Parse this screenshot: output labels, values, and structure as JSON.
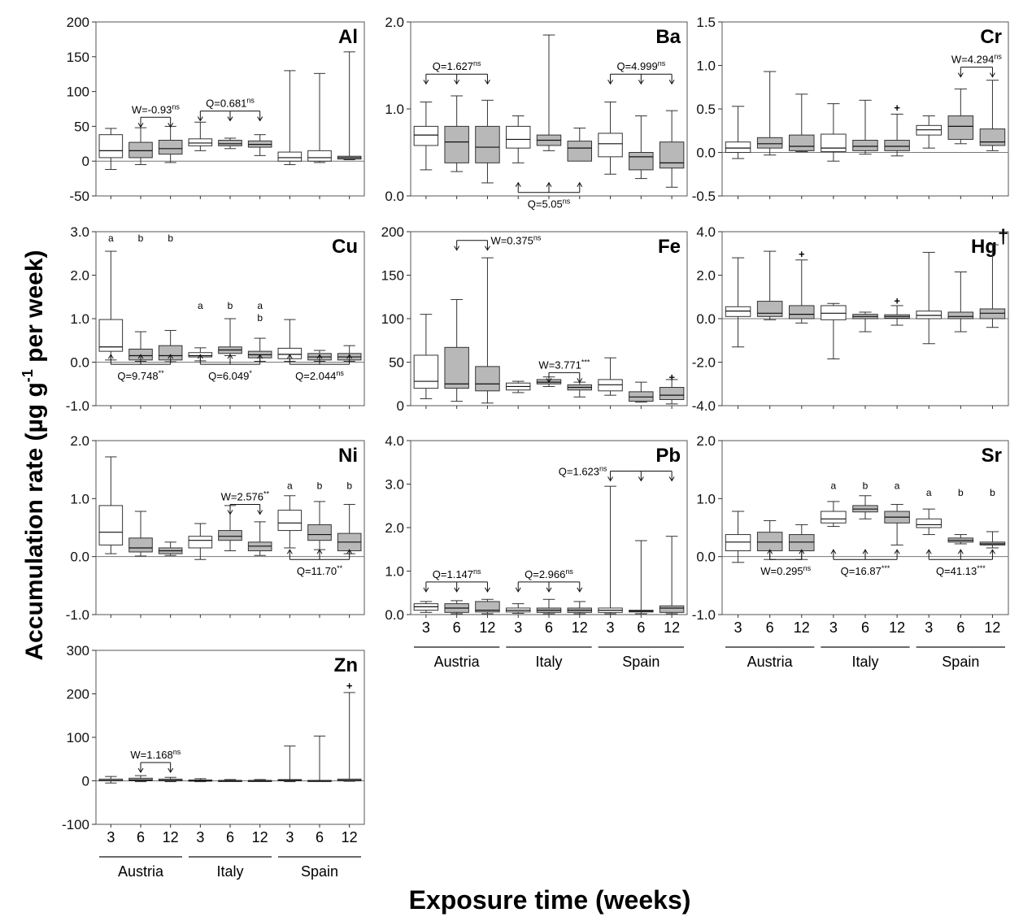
{
  "figure": {
    "ylabel_main": "Accumulation rate (µg g",
    "ylabel_sup": "-1",
    "ylabel_end": " per week)",
    "xlabel": "Exposure time (weeks)",
    "x_ticks": [
      "3",
      "6",
      "12",
      "3",
      "6",
      "12",
      "3",
      "6",
      "12"
    ],
    "countries": [
      "Austria",
      "Italy",
      "Spain"
    ],
    "colors": {
      "early": "#ffffff",
      "late": "#b8b8b8",
      "stroke": "#333333"
    }
  },
  "chart_data": [
    {
      "type": "box",
      "title": "Al",
      "ylim": [
        -50,
        200
      ],
      "yticks": [
        -50,
        0,
        50,
        100,
        150,
        200
      ],
      "ytick_labels": [
        "-50",
        "0",
        "50",
        "100",
        "150",
        "200"
      ],
      "boxes": [
        [
          -12,
          5,
          15,
          38,
          47
        ],
        [
          -5,
          5,
          15,
          27,
          48
        ],
        [
          -2,
          10,
          18,
          30,
          50
        ],
        [
          15,
          22,
          26,
          32,
          56
        ],
        [
          18,
          22,
          25,
          30,
          33
        ],
        [
          8,
          20,
          24,
          29,
          38
        ],
        [
          -5,
          0,
          5,
          13,
          130
        ],
        [
          -2,
          0,
          5,
          15,
          126
        ],
        [
          2,
          3,
          5,
          7,
          157
        ]
      ],
      "late": [
        1,
        2,
        4,
        5,
        8
      ],
      "annotations": [
        {
          "text": "W=-0.93",
          "sup": "ns",
          "groups": [
            1,
            2
          ],
          "side": "above",
          "y": 63
        },
        {
          "text": "Q=0.681",
          "sup": "ns",
          "groups": [
            3,
            4,
            5
          ],
          "side": "above",
          "y": 72
        }
      ],
      "letters": []
    },
    {
      "type": "box",
      "title": "Ba",
      "ylim": [
        0,
        2
      ],
      "yticks": [
        0,
        1,
        2
      ],
      "ytick_labels": [
        "0.0",
        "1.0",
        "2.0"
      ],
      "boxes": [
        [
          0.3,
          0.58,
          0.7,
          0.8,
          1.08
        ],
        [
          0.28,
          0.38,
          0.62,
          0.8,
          1.15
        ],
        [
          0.15,
          0.38,
          0.56,
          0.8,
          1.1
        ],
        [
          0.38,
          0.55,
          0.65,
          0.8,
          0.92
        ],
        [
          0.52,
          0.58,
          0.64,
          0.7,
          1.85
        ],
        [
          0.42,
          0.4,
          0.55,
          0.63,
          0.78
        ],
        [
          0.25,
          0.45,
          0.6,
          0.72,
          1.08
        ],
        [
          0.2,
          0.3,
          0.45,
          0.5,
          0.92
        ],
        [
          0.1,
          0.32,
          0.38,
          0.62,
          0.98
        ]
      ],
      "late": [
        1,
        2,
        4,
        5,
        7,
        8
      ],
      "annotations": [
        {
          "text": "Q=1.627",
          "sup": "ns",
          "groups": [
            0,
            1,
            2
          ],
          "side": "above",
          "y": 1.4
        },
        {
          "text": "Q=4.999",
          "sup": "ns",
          "groups": [
            6,
            7,
            8
          ],
          "side": "above",
          "y": 1.4
        },
        {
          "text": "Q=5.05",
          "sup": "ns",
          "groups": [
            3,
            4,
            5
          ],
          "side": "below",
          "y": 0.04
        }
      ],
      "letters": []
    },
    {
      "type": "box",
      "title": "Cr",
      "ylim": [
        -0.5,
        1.5
      ],
      "yticks": [
        -0.5,
        0,
        0.5,
        1,
        1.5
      ],
      "ytick_labels": [
        "-0.5",
        "0.0",
        "0.5",
        "1.0",
        "1.5"
      ],
      "boxes": [
        [
          -0.07,
          0,
          0.05,
          0.12,
          0.53
        ],
        [
          -0.03,
          0.05,
          0.1,
          0.17,
          0.93
        ],
        [
          0.01,
          0.02,
          0.07,
          0.2,
          0.67
        ],
        [
          -0.1,
          0.01,
          0.05,
          0.21,
          0.56
        ],
        [
          -0.02,
          0.02,
          0.07,
          0.14,
          0.6
        ],
        [
          -0.04,
          0.02,
          0.07,
          0.14,
          0.44
        ],
        [
          0.05,
          0.2,
          0.26,
          0.31,
          0.42
        ],
        [
          0.1,
          0.15,
          0.3,
          0.42,
          0.73
        ],
        [
          0.02,
          0.08,
          0.12,
          0.27,
          0.83
        ]
      ],
      "late": [
        1,
        2,
        4,
        5,
        7,
        8
      ],
      "outliers": [
        [
          5,
          0.52
        ]
      ],
      "annotations": [
        {
          "text": "W=4.294",
          "sup": "ns",
          "groups": [
            7,
            8
          ],
          "side": "above",
          "y": 0.98
        }
      ],
      "letters": []
    },
    {
      "type": "box",
      "title": "Cu",
      "ylim": [
        -1,
        3
      ],
      "yticks": [
        -1,
        0,
        1,
        2,
        3
      ],
      "ytick_labels": [
        "-1.0",
        "0.0",
        "1.0",
        "2.0",
        "3.0"
      ],
      "boxes": [
        [
          0.05,
          0.25,
          0.35,
          0.98,
          2.55
        ],
        [
          0.02,
          0.05,
          0.15,
          0.3,
          0.7
        ],
        [
          0.01,
          0.05,
          0.15,
          0.38,
          0.73
        ],
        [
          0.03,
          0.12,
          0.15,
          0.22,
          0.33
        ],
        [
          0.15,
          0.2,
          0.28,
          0.35,
          1.0
        ],
        [
          0.02,
          0.1,
          0.17,
          0.25,
          0.55
        ],
        [
          0.02,
          0.08,
          0.18,
          0.32,
          0.98
        ],
        [
          0.02,
          0.05,
          0.12,
          0.2,
          0.27
        ],
        [
          0.02,
          0.05,
          0.12,
          0.2,
          0.38
        ]
      ],
      "late": [
        1,
        2,
        4,
        5,
        7,
        8
      ],
      "annotations": [
        {
          "text": "Q=9.748",
          "sup": "**",
          "groups": [
            0,
            1,
            2
          ],
          "side": "below",
          "y": -0.05
        },
        {
          "text": "Q=6.049",
          "sup": "*",
          "groups": [
            3,
            4,
            5
          ],
          "side": "below",
          "y": -0.05
        },
        {
          "text": "Q=2.044",
          "sup": "ns",
          "groups": [
            6,
            7,
            8
          ],
          "side": "below",
          "y": -0.05
        }
      ],
      "letters": [
        {
          "i": 0,
          "text": "a",
          "y": 2.85
        },
        {
          "i": 1,
          "text": "b",
          "y": 2.85
        },
        {
          "i": 2,
          "text": "b",
          "y": 2.85
        },
        {
          "i": 3,
          "text": "a",
          "y": 1.3
        },
        {
          "i": 4,
          "text": "b",
          "y": 1.3
        },
        {
          "i": 5,
          "text": "a",
          "y": 1.3
        },
        {
          "i": 5,
          "text": "b",
          "y": 1.02
        }
      ]
    },
    {
      "type": "box",
      "title": "Fe",
      "ylim": [
        0,
        200
      ],
      "yticks": [
        0,
        50,
        100,
        150,
        200
      ],
      "ytick_labels": [
        "0",
        "50",
        "100",
        "150",
        "200"
      ],
      "boxes": [
        [
          8,
          20,
          28,
          58,
          105
        ],
        [
          5,
          20,
          25,
          67,
          122
        ],
        [
          3,
          17,
          25,
          45,
          170
        ],
        [
          15,
          18,
          22,
          26,
          28
        ],
        [
          22,
          25,
          27,
          30,
          33
        ],
        [
          10,
          18,
          21,
          24,
          27
        ],
        [
          12,
          17,
          24,
          30,
          55
        ],
        [
          4,
          5,
          10,
          16,
          27
        ],
        [
          2,
          7,
          12,
          21,
          30
        ]
      ],
      "late": [
        1,
        2,
        4,
        5,
        7,
        8
      ],
      "outliers": [
        [
          8,
          33
        ]
      ],
      "annotations": [
        {
          "text": "W=0.375",
          "sup": "ns",
          "groups": [
            1,
            2
          ],
          "side": "above",
          "y": 190,
          "label_right": true
        },
        {
          "text": "W=3.771",
          "sup": "***",
          "groups": [
            4,
            5
          ],
          "side": "above",
          "y": 38
        }
      ],
      "letters": []
    },
    {
      "type": "box",
      "title": "Hg",
      "title_sup": "†",
      "ylim": [
        -4,
        4
      ],
      "yticks": [
        -4,
        -2,
        0,
        2,
        4
      ],
      "ytick_labels": [
        "-4.0",
        "-2.0",
        "0.0",
        "2.0",
        "4.0"
      ],
      "boxes": [
        [
          -1.3,
          0.1,
          0.35,
          0.55,
          2.8
        ],
        [
          -0.05,
          0.1,
          0.25,
          0.8,
          3.1
        ],
        [
          -0.2,
          0,
          0.2,
          0.6,
          2.7
        ],
        [
          -1.85,
          -0.05,
          0.25,
          0.6,
          0.7
        ],
        [
          -0.6,
          0,
          0.1,
          0.2,
          0.3
        ],
        [
          -0.3,
          0.02,
          0.1,
          0.18,
          0.6
        ],
        [
          -1.15,
          0,
          0.15,
          0.35,
          3.05
        ],
        [
          -0.6,
          0,
          0.1,
          0.3,
          2.15
        ],
        [
          -0.4,
          0,
          0.25,
          0.45,
          3.4
        ]
      ],
      "late": [
        1,
        2,
        4,
        5,
        7,
        8
      ],
      "outliers": [
        [
          2,
          3.0
        ],
        [
          5,
          0.85
        ]
      ],
      "annotations": [],
      "letters": []
    },
    {
      "type": "box",
      "title": "Ni",
      "ylim": [
        -1,
        2
      ],
      "yticks": [
        -1,
        0,
        1,
        2
      ],
      "ytick_labels": [
        "-1.0",
        "0.0",
        "1.0",
        "2.0"
      ],
      "boxes": [
        [
          0.05,
          0.2,
          0.42,
          0.88,
          1.72
        ],
        [
          0.01,
          0.08,
          0.15,
          0.32,
          0.78
        ],
        [
          0.02,
          0.05,
          0.1,
          0.15,
          0.25
        ],
        [
          -0.05,
          0.15,
          0.28,
          0.35,
          0.57
        ],
        [
          0.1,
          0.28,
          0.35,
          0.45,
          0.88
        ],
        [
          0.02,
          0.1,
          0.18,
          0.25,
          0.6
        ],
        [
          0.15,
          0.45,
          0.58,
          0.8,
          1.05
        ],
        [
          0.12,
          0.28,
          0.38,
          0.55,
          0.95
        ],
        [
          0.05,
          0.1,
          0.25,
          0.4,
          0.9
        ]
      ],
      "late": [
        1,
        2,
        4,
        5,
        7,
        8
      ],
      "annotations": [
        {
          "text": "W=2.576",
          "sup": "**",
          "groups": [
            4,
            5
          ],
          "side": "above",
          "y": 0.9
        },
        {
          "text": "Q=11.70",
          "sup": "**",
          "groups": [
            6,
            7,
            8
          ],
          "side": "below",
          "y": -0.05
        }
      ],
      "letters": [
        {
          "i": 6,
          "text": "a",
          "y": 1.22
        },
        {
          "i": 7,
          "text": "b",
          "y": 1.22
        },
        {
          "i": 8,
          "text": "b",
          "y": 1.22
        }
      ]
    },
    {
      "type": "box",
      "title": "Pb",
      "ylim": [
        0,
        4
      ],
      "yticks": [
        0,
        1,
        2,
        3,
        4
      ],
      "ytick_labels": [
        "0.0",
        "1.0",
        "2.0",
        "3.0",
        "4.0"
      ],
      "boxes": [
        [
          0.05,
          0.1,
          0.18,
          0.25,
          0.3
        ],
        [
          0.02,
          0.05,
          0.15,
          0.25,
          0.32
        ],
        [
          0.02,
          0.06,
          0.1,
          0.3,
          0.35
        ],
        [
          0.03,
          0.06,
          0.1,
          0.15,
          0.25
        ],
        [
          0.02,
          0.05,
          0.1,
          0.15,
          0.35
        ],
        [
          0.02,
          0.05,
          0.1,
          0.15,
          0.3
        ],
        [
          0.02,
          0.05,
          0.1,
          0.15,
          2.95
        ],
        [
          0.02,
          0.06,
          0.08,
          0.1,
          1.7
        ],
        [
          0.02,
          0.05,
          0.15,
          0.2,
          1.8
        ]
      ],
      "late": [
        1,
        2,
        4,
        5,
        7,
        8
      ],
      "annotations": [
        {
          "text": "Q=1.147",
          "sup": "ns",
          "groups": [
            0,
            1,
            2
          ],
          "side": "above",
          "y": 0.75
        },
        {
          "text": "Q=2.966",
          "sup": "ns",
          "groups": [
            3,
            4,
            5
          ],
          "side": "above",
          "y": 0.75
        },
        {
          "text": "Q=1.623",
          "sup": "ns",
          "groups": [
            6,
            7,
            8
          ],
          "side": "above",
          "y": 3.3,
          "label_left": true
        }
      ],
      "letters": []
    },
    {
      "type": "box",
      "title": "Sr",
      "ylim": [
        -1,
        2
      ],
      "yticks": [
        -1,
        0,
        1,
        2
      ],
      "ytick_labels": [
        "-1.0",
        "0.0",
        "1.0",
        "2.0"
      ],
      "boxes": [
        [
          -0.1,
          0.1,
          0.25,
          0.38,
          0.78
        ],
        [
          -0.05,
          0.1,
          0.25,
          0.42,
          0.62
        ],
        [
          -0.05,
          0.1,
          0.25,
          0.38,
          0.55
        ],
        [
          0.52,
          0.58,
          0.65,
          0.78,
          0.95
        ],
        [
          0.65,
          0.77,
          0.82,
          0.88,
          1.05
        ],
        [
          0.2,
          0.58,
          0.68,
          0.78,
          0.9
        ],
        [
          0.38,
          0.5,
          0.55,
          0.65,
          0.82
        ],
        [
          0.22,
          0.25,
          0.28,
          0.32,
          0.38
        ],
        [
          0.15,
          0.2,
          0.22,
          0.25,
          0.43
        ]
      ],
      "late": [
        1,
        2,
        4,
        5,
        7,
        8
      ],
      "annotations": [
        {
          "text": "W=0.295",
          "sup": "ns",
          "groups": [
            1,
            2
          ],
          "side": "below",
          "y": -0.05
        },
        {
          "text": "Q=16.87",
          "sup": "***",
          "groups": [
            3,
            4,
            5
          ],
          "side": "below",
          "y": -0.05
        },
        {
          "text": "Q=41.13",
          "sup": "***",
          "groups": [
            6,
            7,
            8
          ],
          "side": "below",
          "y": -0.05
        }
      ],
      "letters": [
        {
          "i": 3,
          "text": "a",
          "y": 1.22
        },
        {
          "i": 4,
          "text": "b",
          "y": 1.22
        },
        {
          "i": 5,
          "text": "a",
          "y": 1.22
        },
        {
          "i": 6,
          "text": "a",
          "y": 1.1
        },
        {
          "i": 7,
          "text": "b",
          "y": 1.1
        },
        {
          "i": 8,
          "text": "b",
          "y": 1.1
        }
      ]
    },
    {
      "type": "box",
      "title": "Zn",
      "ylim": [
        -100,
        300
      ],
      "yticks": [
        -100,
        0,
        100,
        200,
        300
      ],
      "ytick_labels": [
        "-100",
        "0",
        "100",
        "200",
        "300"
      ],
      "boxes": [
        [
          -5,
          0,
          1,
          4,
          10
        ],
        [
          -2,
          0,
          2,
          6,
          12
        ],
        [
          -2,
          0,
          1,
          4,
          8
        ],
        [
          -2,
          0,
          0.5,
          2,
          5
        ],
        [
          -1,
          0,
          0.5,
          1,
          3
        ],
        [
          -1,
          0,
          0.5,
          1,
          3
        ],
        [
          -2,
          0,
          1,
          3,
          80
        ],
        [
          -1,
          0,
          0.5,
          1,
          103
        ],
        [
          -1,
          0,
          1,
          4,
          203
        ]
      ],
      "late": [
        1,
        2,
        4,
        5,
        7,
        8
      ],
      "outliers": [
        [
          8,
          220
        ]
      ],
      "annotations": [
        {
          "text": "W=1.168",
          "sup": "ns",
          "groups": [
            1,
            2
          ],
          "side": "above",
          "y": 42
        }
      ],
      "letters": []
    }
  ]
}
